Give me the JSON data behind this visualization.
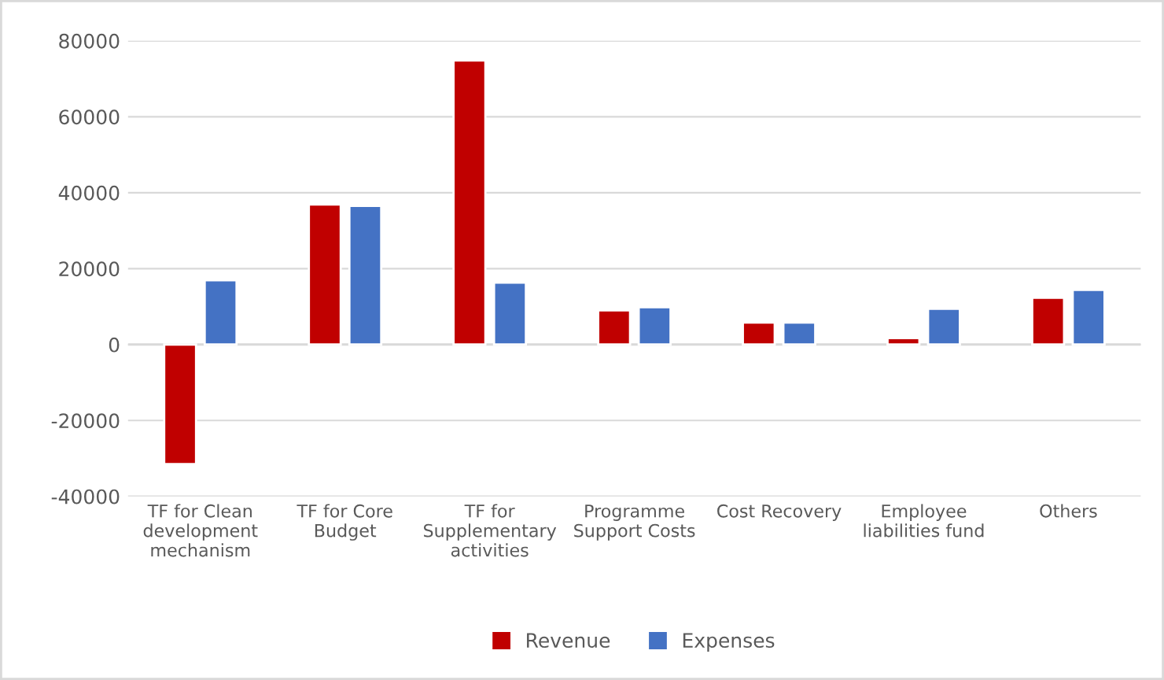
{
  "chart_data": {
    "type": "bar",
    "categories": [
      "TF for Clean\ndevelopment\nmechanism",
      "TF for Core\nBudget",
      "TF for\nSupplementary\nactivities",
      "Programme\nSupport Costs",
      "Cost Recovery",
      "Employee\nliabilities fund",
      "Others"
    ],
    "series": [
      {
        "name": "Revenue",
        "color": "#c00000",
        "values": [
          -31500,
          36900,
          74800,
          9000,
          5800,
          1700,
          12300
        ]
      },
      {
        "name": "Expenses",
        "color": "#4472c4",
        "values": [
          16900,
          36500,
          16300,
          9800,
          5800,
          9400,
          14400
        ]
      }
    ],
    "ylim": [
      -40000,
      80000
    ],
    "yticks": [
      -40000,
      -20000,
      0,
      20000,
      40000,
      60000,
      80000
    ],
    "grid": "y",
    "legend": "bottom"
  }
}
